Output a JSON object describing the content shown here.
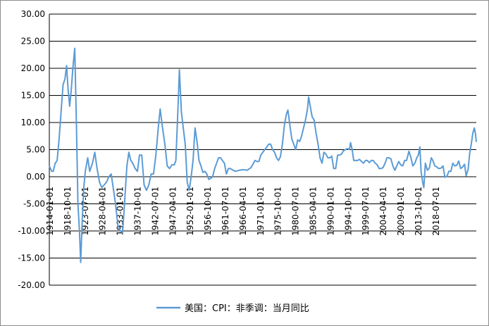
{
  "chart_data": {
    "type": "line",
    "title": "",
    "xlabel": "",
    "ylabel": "",
    "ylim": [
      -20,
      30
    ],
    "y_ticks": [
      "30.00",
      "25.00",
      "20.00",
      "15.00",
      "10.00",
      "5.00",
      "0.00",
      "-5.00",
      "-10.00",
      "-15.00",
      "-20.00"
    ],
    "x_tick_labels": [
      "1914-01-01",
      "1918-10-01",
      "1923-07-01",
      "1928-04-01",
      "1933-01-01",
      "1937-10-01",
      "1942-07-01",
      "1947-04-01",
      "1952-01-01",
      "1956-10-01",
      "1961-07-01",
      "1966-04-01",
      "1971-01-01",
      "1975-10-01",
      "1980-07-01",
      "1985-04-01",
      "1990-01-01",
      "1994-10-01",
      "1999-07-01",
      "2004-04-01",
      "2009-01-01",
      "2013-10-01",
      "2018-07-01"
    ],
    "grid": "horizontal",
    "legend_position": "bottom",
    "line_color": "#5b9bd5",
    "series": [
      {
        "name": "美国：CPI：非季调：当月同比",
        "points": [
          [
            1914.0,
            2.0
          ],
          [
            1914.6,
            1.0
          ],
          [
            1915.0,
            1.0
          ],
          [
            1915.5,
            2.5
          ],
          [
            1916.0,
            3.0
          ],
          [
            1916.5,
            7.0
          ],
          [
            1917.0,
            12.0
          ],
          [
            1917.5,
            17.0
          ],
          [
            1918.0,
            18.0
          ],
          [
            1918.4,
            20.5
          ],
          [
            1918.8,
            16.0
          ],
          [
            1919.2,
            13.0
          ],
          [
            1919.6,
            16.0
          ],
          [
            1920.0,
            20.0
          ],
          [
            1920.5,
            23.7
          ],
          [
            1920.9,
            10.0
          ],
          [
            1921.3,
            -5.0
          ],
          [
            1921.7,
            -10.0
          ],
          [
            1922.0,
            -15.8
          ],
          [
            1922.4,
            -8.0
          ],
          [
            1922.8,
            -2.0
          ],
          [
            1923.2,
            1.0
          ],
          [
            1923.8,
            3.5
          ],
          [
            1924.3,
            1.0
          ],
          [
            1925.0,
            2.5
          ],
          [
            1925.6,
            4.5
          ],
          [
            1926.2,
            1.5
          ],
          [
            1926.8,
            -1.0
          ],
          [
            1927.4,
            -2.0
          ],
          [
            1928.0,
            -1.5
          ],
          [
            1928.6,
            -1.0
          ],
          [
            1929.2,
            0.0
          ],
          [
            1929.8,
            0.5
          ],
          [
            1930.3,
            -2.0
          ],
          [
            1930.9,
            -5.0
          ],
          [
            1931.5,
            -9.0
          ],
          [
            1932.1,
            -10.0
          ],
          [
            1932.7,
            -10.3
          ],
          [
            1933.2,
            -5.0
          ],
          [
            1933.8,
            2.0
          ],
          [
            1934.3,
            4.5
          ],
          [
            1934.8,
            3.0
          ],
          [
            1935.3,
            2.5
          ],
          [
            1935.9,
            1.5
          ],
          [
            1936.5,
            1.0
          ],
          [
            1937.0,
            4.0
          ],
          [
            1937.6,
            4.0
          ],
          [
            1938.2,
            -1.5
          ],
          [
            1938.8,
            -2.5
          ],
          [
            1939.4,
            -1.5
          ],
          [
            1940.0,
            0.5
          ],
          [
            1940.6,
            0.5
          ],
          [
            1941.2,
            4.0
          ],
          [
            1941.8,
            9.0
          ],
          [
            1942.3,
            12.5
          ],
          [
            1942.9,
            9.0
          ],
          [
            1943.5,
            6.0
          ],
          [
            1944.1,
            2.0
          ],
          [
            1944.7,
            1.5
          ],
          [
            1945.3,
            2.2
          ],
          [
            1945.9,
            2.2
          ],
          [
            1946.3,
            3.0
          ],
          [
            1946.8,
            12.0
          ],
          [
            1947.2,
            19.7
          ],
          [
            1947.7,
            12.0
          ],
          [
            1948.2,
            9.0
          ],
          [
            1948.7,
            6.0
          ],
          [
            1949.2,
            -1.0
          ],
          [
            1949.7,
            -2.5
          ],
          [
            1950.2,
            0.0
          ],
          [
            1950.7,
            3.0
          ],
          [
            1951.2,
            9.0
          ],
          [
            1951.7,
            6.5
          ],
          [
            1952.2,
            3.0
          ],
          [
            1952.7,
            2.0
          ],
          [
            1953.2,
            0.8
          ],
          [
            1953.7,
            1.0
          ],
          [
            1954.2,
            0.5
          ],
          [
            1954.7,
            -0.5
          ],
          [
            1955.2,
            -0.3
          ],
          [
            1955.7,
            0.0
          ],
          [
            1956.2,
            1.5
          ],
          [
            1956.7,
            2.5
          ],
          [
            1957.2,
            3.5
          ],
          [
            1957.7,
            3.5
          ],
          [
            1958.2,
            3.0
          ],
          [
            1958.7,
            2.5
          ],
          [
            1959.2,
            0.5
          ],
          [
            1959.7,
            1.5
          ],
          [
            1960.2,
            1.5
          ],
          [
            1960.7,
            1.3
          ],
          [
            1961.5,
            1.0
          ],
          [
            1962.5,
            1.2
          ],
          [
            1963.5,
            1.3
          ],
          [
            1964.5,
            1.2
          ],
          [
            1965.5,
            1.7
          ],
          [
            1966.5,
            3.0
          ],
          [
            1967.0,
            2.8
          ],
          [
            1967.5,
            2.8
          ],
          [
            1968.0,
            4.0
          ],
          [
            1968.5,
            4.5
          ],
          [
            1969.0,
            5.0
          ],
          [
            1969.5,
            5.5
          ],
          [
            1970.0,
            6.0
          ],
          [
            1970.5,
            6.0
          ],
          [
            1971.0,
            5.0
          ],
          [
            1971.5,
            4.5
          ],
          [
            1972.0,
            3.5
          ],
          [
            1972.5,
            3.0
          ],
          [
            1973.0,
            3.7
          ],
          [
            1973.5,
            6.0
          ],
          [
            1974.0,
            9.5
          ],
          [
            1974.5,
            11.5
          ],
          [
            1974.9,
            12.3
          ],
          [
            1975.4,
            9.5
          ],
          [
            1975.9,
            7.0
          ],
          [
            1976.4,
            6.0
          ],
          [
            1976.9,
            5.0
          ],
          [
            1977.4,
            6.8
          ],
          [
            1977.9,
            6.5
          ],
          [
            1978.4,
            7.5
          ],
          [
            1978.9,
            9.0
          ],
          [
            1979.4,
            10.5
          ],
          [
            1979.9,
            12.5
          ],
          [
            1980.2,
            14.7
          ],
          [
            1980.6,
            13.0
          ],
          [
            1981.1,
            11.0
          ],
          [
            1981.6,
            10.5
          ],
          [
            1982.1,
            8.0
          ],
          [
            1982.6,
            6.0
          ],
          [
            1983.1,
            3.5
          ],
          [
            1983.6,
            2.5
          ],
          [
            1984.1,
            4.5
          ],
          [
            1984.6,
            4.2
          ],
          [
            1985.1,
            3.5
          ],
          [
            1985.6,
            3.5
          ],
          [
            1986.1,
            3.8
          ],
          [
            1986.6,
            1.5
          ],
          [
            1987.1,
            1.5
          ],
          [
            1987.6,
            4.0
          ],
          [
            1988.1,
            4.0
          ],
          [
            1988.6,
            4.2
          ],
          [
            1989.1,
            4.8
          ],
          [
            1989.6,
            5.0
          ],
          [
            1990.1,
            5.2
          ],
          [
            1990.6,
            5.0
          ],
          [
            1990.9,
            6.3
          ],
          [
            1991.3,
            5.0
          ],
          [
            1991.7,
            3.0
          ],
          [
            1992.2,
            3.0
          ],
          [
            1992.7,
            3.0
          ],
          [
            1993.2,
            3.2
          ],
          [
            1993.7,
            2.8
          ],
          [
            1994.2,
            2.5
          ],
          [
            1994.7,
            3.0
          ],
          [
            1995.2,
            3.0
          ],
          [
            1995.7,
            2.6
          ],
          [
            1996.2,
            3.0
          ],
          [
            1996.7,
            3.0
          ],
          [
            1997.2,
            2.5
          ],
          [
            1997.7,
            2.2
          ],
          [
            1998.2,
            1.5
          ],
          [
            1998.7,
            1.5
          ],
          [
            1999.2,
            1.7
          ],
          [
            1999.7,
            2.5
          ],
          [
            2000.2,
            3.5
          ],
          [
            2000.7,
            3.5
          ],
          [
            2001.2,
            3.3
          ],
          [
            2001.7,
            2.0
          ],
          [
            2002.2,
            1.2
          ],
          [
            2002.7,
            2.0
          ],
          [
            2003.2,
            2.8
          ],
          [
            2003.7,
            2.2
          ],
          [
            2004.2,
            2.0
          ],
          [
            2004.7,
            3.0
          ],
          [
            2005.2,
            3.0
          ],
          [
            2005.8,
            4.7
          ],
          [
            2006.3,
            3.5
          ],
          [
            2006.8,
            2.0
          ],
          [
            2007.3,
            2.5
          ],
          [
            2007.8,
            3.5
          ],
          [
            2008.2,
            4.0
          ],
          [
            2008.6,
            5.5
          ],
          [
            2008.9,
            1.0
          ],
          [
            2009.3,
            -1.0
          ],
          [
            2009.6,
            -2.0
          ],
          [
            2010.0,
            2.5
          ],
          [
            2010.5,
            1.2
          ],
          [
            2011.0,
            1.6
          ],
          [
            2011.5,
            3.5
          ],
          [
            2011.9,
            3.0
          ],
          [
            2012.4,
            2.0
          ],
          [
            2012.9,
            1.8
          ],
          [
            2013.4,
            1.5
          ],
          [
            2014.0,
            1.6
          ],
          [
            2014.5,
            2.0
          ],
          [
            2015.0,
            -0.1
          ],
          [
            2015.5,
            0.1
          ],
          [
            2016.0,
            1.0
          ],
          [
            2016.5,
            1.0
          ],
          [
            2017.0,
            2.5
          ],
          [
            2017.5,
            2.0
          ],
          [
            2018.0,
            2.1
          ],
          [
            2018.5,
            2.9
          ],
          [
            2019.0,
            1.5
          ],
          [
            2019.5,
            1.8
          ],
          [
            2020.0,
            2.3
          ],
          [
            2020.4,
            0.2
          ],
          [
            2020.9,
            1.3
          ],
          [
            2021.3,
            4.2
          ],
          [
            2021.7,
            6.0
          ],
          [
            2022.1,
            8.0
          ],
          [
            2022.5,
            9.0
          ],
          [
            2022.8,
            7.8
          ],
          [
            2023.0,
            6.4
          ]
        ]
      }
    ]
  }
}
